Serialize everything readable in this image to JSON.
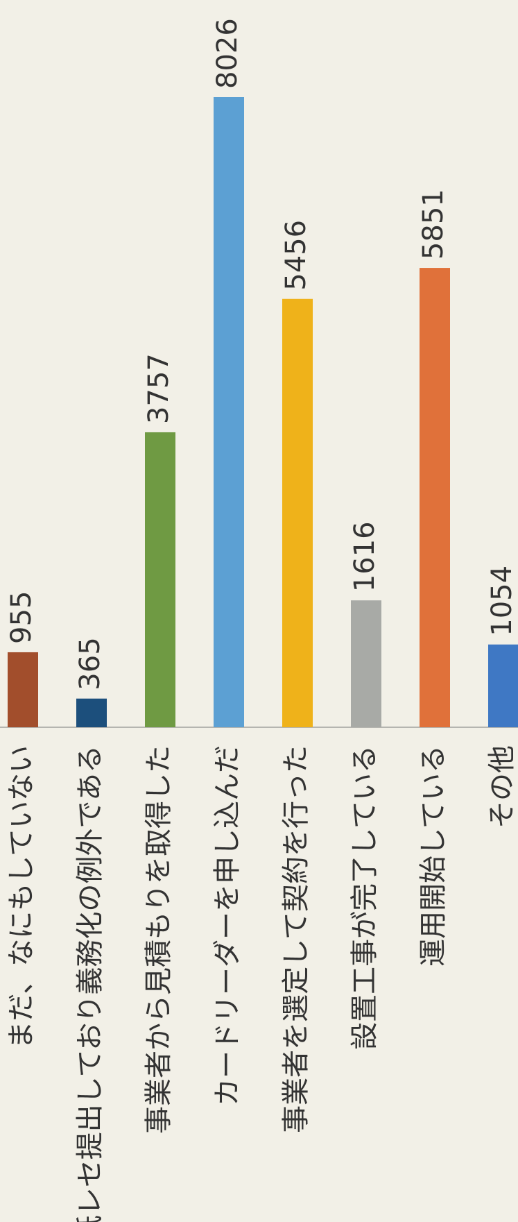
{
  "chart_data": {
    "type": "bar",
    "categories": [
      "まだ、なにもしていない",
      "紙レセ提出しており義務化の例外である",
      "事業者から見積もりを取得した",
      "カードリーダーを申し込んだ",
      "事業者を選定して契約を行った",
      "設置工事が完了している",
      "運用開始している",
      "その他"
    ],
    "values": [
      955,
      365,
      3757,
      8026,
      5456,
      1616,
      5851,
      1054
    ],
    "colors": [
      "#a24e2c",
      "#1c4f7c",
      "#6f9a43",
      "#5ca0d3",
      "#efb21a",
      "#a8aaa6",
      "#e0713a",
      "#3f78c4"
    ]
  }
}
